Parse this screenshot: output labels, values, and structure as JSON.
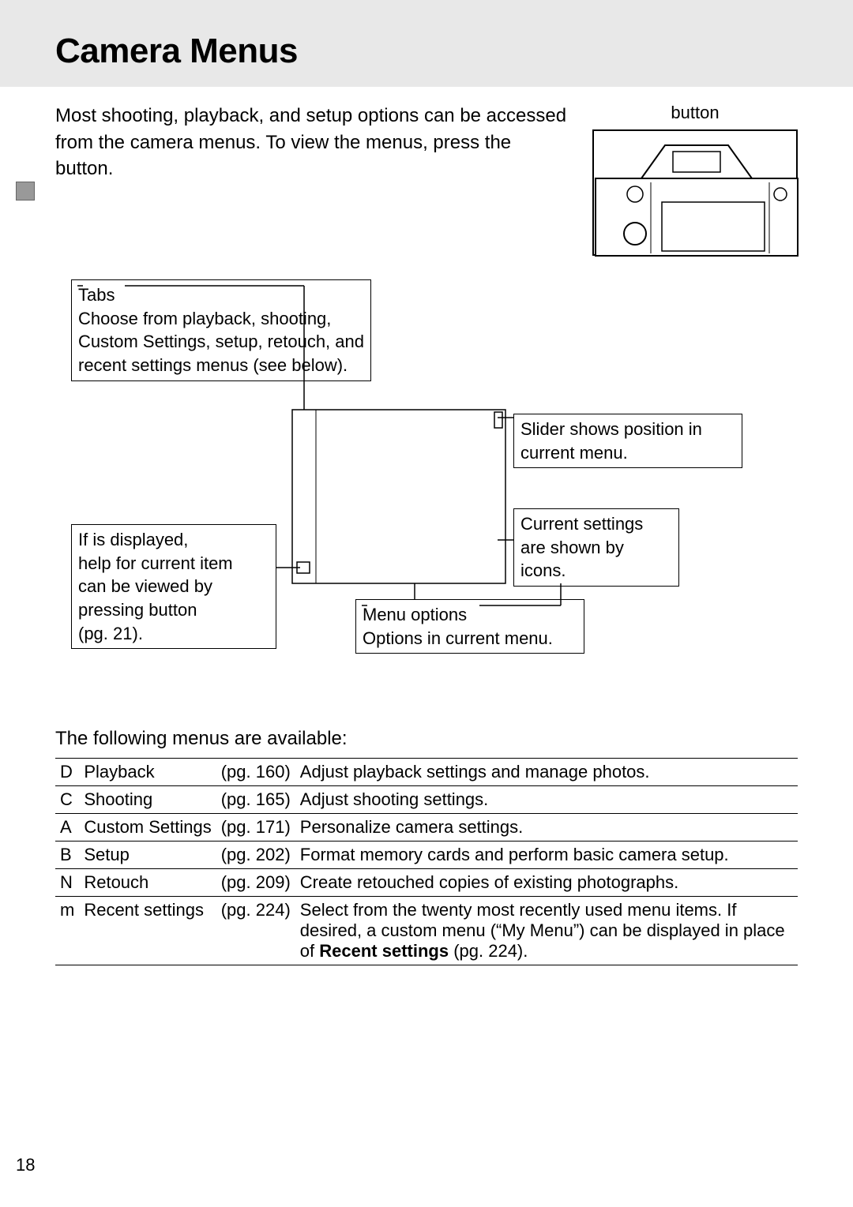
{
  "page": {
    "title": "Camera Menus",
    "intro": "Most shooting, playback, and setup options can be accessed from the camera menus.  To view the menus, press the button.",
    "camera_caption": "button",
    "following": "The following menus are available:",
    "page_number": "18"
  },
  "callouts": {
    "tabs": {
      "label": "Tabs",
      "body": "Choose from playback, shooting, Custom Settings, setup, retouch, and recent settings menus (see below)."
    },
    "help": {
      "line1": "If       is displayed,",
      "line2": "help for current item",
      "line3": "can be viewed by",
      "line4": "pressing       button",
      "line5": "(pg. 21)."
    },
    "slider": {
      "line1": "Slider shows position in",
      "line2": "current menu."
    },
    "settings": {
      "line1": "Current settings",
      "line2": "are shown by",
      "line3": "icons."
    },
    "options": {
      "label": "Menu options",
      "body": "Options in current menu."
    }
  },
  "menu_table": {
    "rows": [
      {
        "icon": "D",
        "name": "Playback",
        "pg": "(pg. 160)",
        "desc": "Adjust playback settings and manage photos."
      },
      {
        "icon": "C",
        "name": "Shooting",
        "pg": "(pg. 165)",
        "desc": "Adjust shooting settings."
      },
      {
        "icon": "A",
        "name": "Custom Settings",
        "pg": "(pg. 171)",
        "desc": "Personalize camera settings."
      },
      {
        "icon": "B",
        "name": "Setup",
        "pg": "(pg. 202)",
        "desc": "Format memory cards and perform basic camera setup."
      },
      {
        "icon": "N",
        "name": "Retouch",
        "pg": "(pg. 209)",
        "desc": "Create retouched copies of existing photographs."
      }
    ],
    "recent": {
      "icon": "m",
      "name": "Recent settings",
      "pg": "(pg. 224)",
      "desc_pre": "Select from the twenty most recently used menu items.  If desired, a custom menu (“My Menu”) can be displayed in place of ",
      "desc_bold": "Recent settings",
      "desc_post": " (pg. 224)."
    }
  },
  "style": {
    "bg": "#ffffff",
    "band_bg": "#e8e8e8",
    "text": "#000000",
    "border": "#000000",
    "title_fontsize": 44,
    "body_fontsize": 24,
    "table_fontsize": 22
  }
}
